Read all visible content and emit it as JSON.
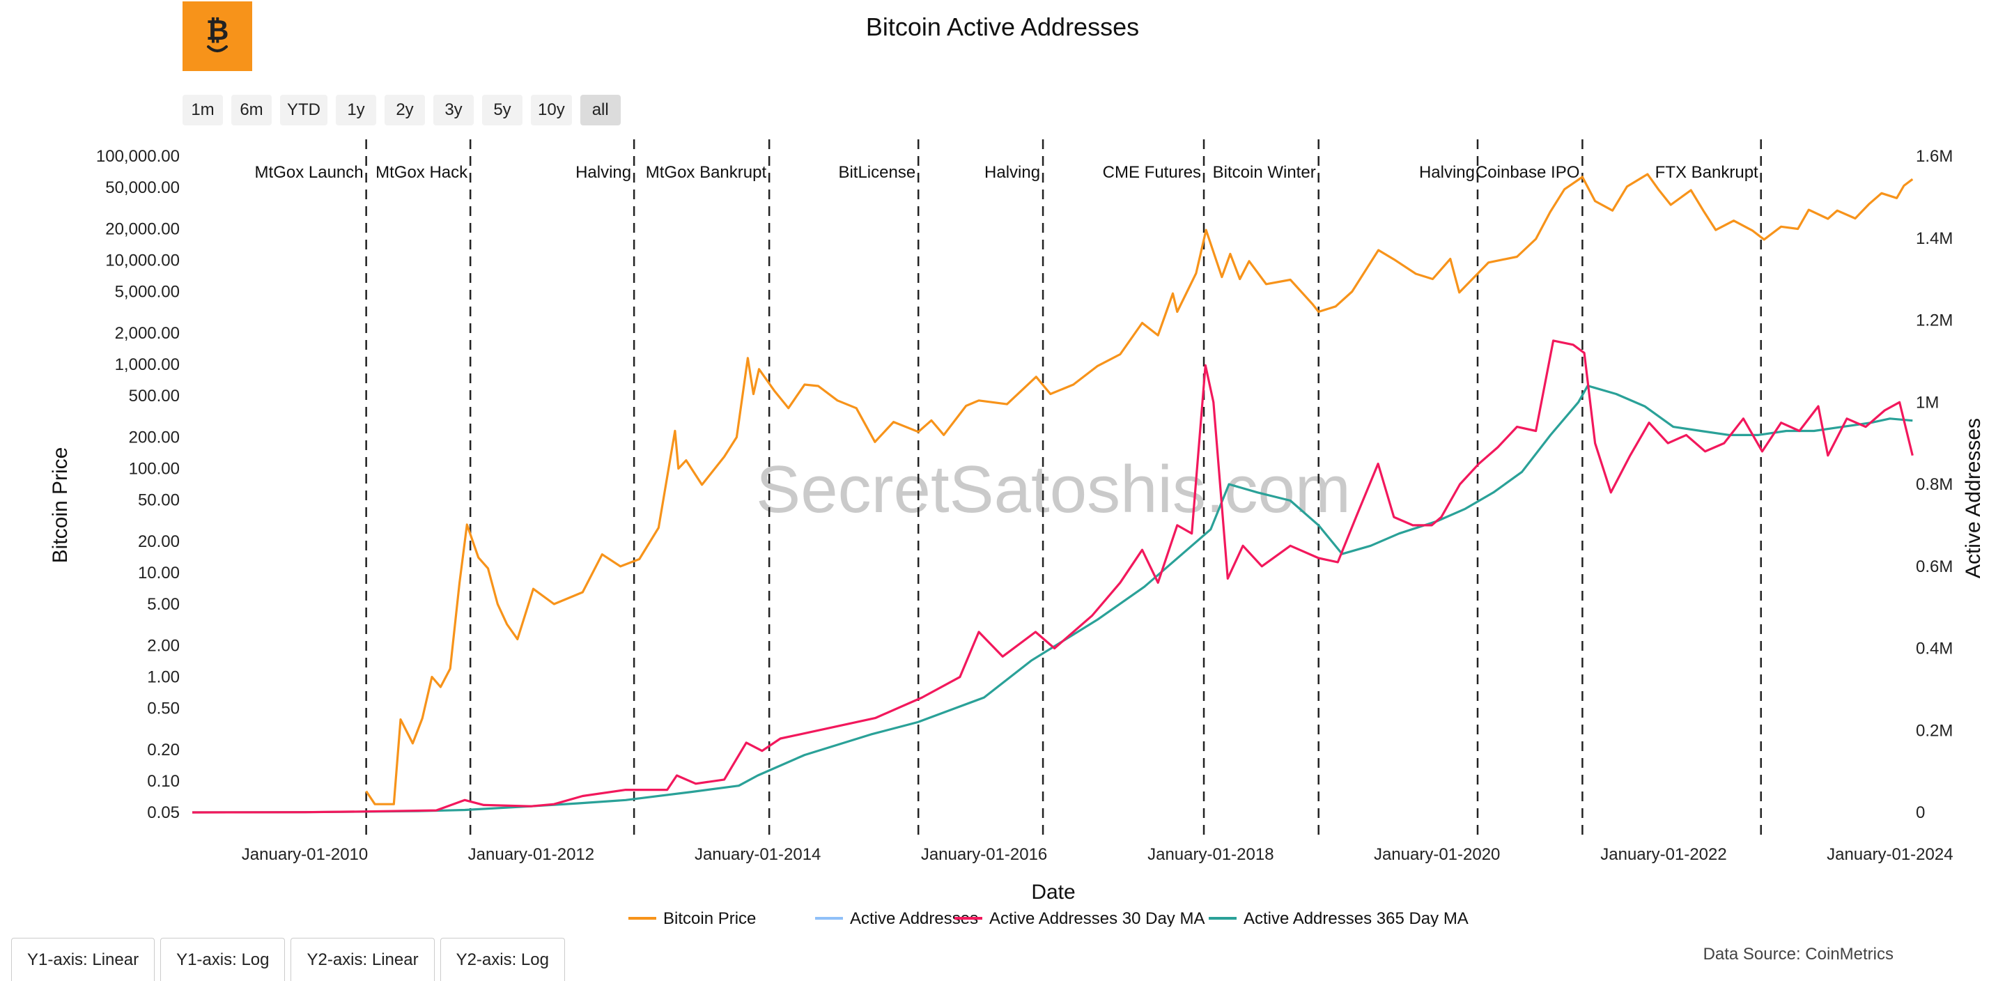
{
  "title": "Bitcoin Active Addresses",
  "watermark": "SecretSatoshis.com",
  "data_source": "Data Source: CoinMetrics",
  "range_buttons": [
    "1m",
    "6m",
    "YTD",
    "1y",
    "2y",
    "3y",
    "5y",
    "10y",
    "all"
  ],
  "active_range": "all",
  "axis_buttons": [
    "Y1-axis: Linear",
    "Y1-axis: Log",
    "Y2-axis: Linear",
    "Y2-axis: Log"
  ],
  "colors": {
    "price": "#f7931a",
    "active": "#90c0f8",
    "ma30": "#f2185c",
    "ma365": "#2aa198",
    "logo": "#f7931a"
  },
  "chart_data": {
    "type": "line",
    "title": "Bitcoin Active Addresses",
    "xlabel": "Date",
    "ylabel": "Bitcoin Price",
    "y2label": "Active Addresses",
    "y1_scale": "log",
    "y1_ticks": [
      {
        "v": 100000,
        "label": "100,000.00"
      },
      {
        "v": 50000,
        "label": "50,000.00"
      },
      {
        "v": 20000,
        "label": "20,000.00"
      },
      {
        "v": 10000,
        "label": "10,000.00"
      },
      {
        "v": 5000,
        "label": "5,000.00"
      },
      {
        "v": 2000,
        "label": "2,000.00"
      },
      {
        "v": 1000,
        "label": "1,000.00"
      },
      {
        "v": 500,
        "label": "500.00"
      },
      {
        "v": 200,
        "label": "200.00"
      },
      {
        "v": 100,
        "label": "100.00"
      },
      {
        "v": 50,
        "label": "50.00"
      },
      {
        "v": 20,
        "label": "20.00"
      },
      {
        "v": 10,
        "label": "10.00"
      },
      {
        "v": 5,
        "label": "5.00"
      },
      {
        "v": 2,
        "label": "2.00"
      },
      {
        "v": 1,
        "label": "1.00"
      },
      {
        "v": 0.5,
        "label": "0.50"
      },
      {
        "v": 0.2,
        "label": "0.20"
      },
      {
        "v": 0.1,
        "label": "0.10"
      },
      {
        "v": 0.05,
        "label": "0.05"
      }
    ],
    "y2_ticks": [
      {
        "v": 1600000,
        "label": "1.6M"
      },
      {
        "v": 1400000,
        "label": "1.4M"
      },
      {
        "v": 1200000,
        "label": "1.2M"
      },
      {
        "v": 1000000,
        "label": "1M"
      },
      {
        "v": 800000,
        "label": "0.8M"
      },
      {
        "v": 600000,
        "label": "0.6M"
      },
      {
        "v": 400000,
        "label": "0.4M"
      },
      {
        "v": 200000,
        "label": "0.2M"
      },
      {
        "v": 0,
        "label": "0"
      }
    ],
    "y2lim": [
      0,
      1600000
    ],
    "xlim": [
      "2009-01-03",
      "2024-03-20"
    ],
    "x_ticks": [
      {
        "date": "2010-01-01",
        "label": "January-01-2010"
      },
      {
        "date": "2012-01-01",
        "label": "January-01-2012"
      },
      {
        "date": "2014-01-01",
        "label": "January-01-2014"
      },
      {
        "date": "2016-01-01",
        "label": "January-01-2016"
      },
      {
        "date": "2018-01-01",
        "label": "January-01-2018"
      },
      {
        "date": "2020-01-01",
        "label": "January-01-2020"
      },
      {
        "date": "2022-01-01",
        "label": "January-01-2022"
      },
      {
        "date": "2024-01-01",
        "label": "January-01-2024"
      }
    ],
    "events": [
      {
        "date": "2010-07-18",
        "label": "MtGox Launch"
      },
      {
        "date": "2011-06-19",
        "label": "MtGox Hack"
      },
      {
        "date": "2012-11-28",
        "label": "Halving"
      },
      {
        "date": "2014-02-07",
        "label": "MtGox Bankrupt"
      },
      {
        "date": "2015-06-03",
        "label": "BitLicense"
      },
      {
        "date": "2016-07-09",
        "label": "Halving"
      },
      {
        "date": "2017-12-10",
        "label": "CME Futures"
      },
      {
        "date": "2018-12-15",
        "label": "Bitcoin Winter"
      },
      {
        "date": "2020-05-11",
        "label": "Halving"
      },
      {
        "date": "2021-04-14",
        "label": "Coinbase IPO"
      },
      {
        "date": "2022-11-11",
        "label": "FTX Bankrupt"
      }
    ],
    "legend_position": "bottom-center",
    "series": [
      {
        "name": "Bitcoin Price",
        "axis": "y1",
        "color": "#f7931a",
        "points": [
          [
            "2010-07-18",
            0.08
          ],
          [
            "2010-08-15",
            0.06
          ],
          [
            "2010-10-15",
            0.06
          ],
          [
            "2010-11-06",
            0.39
          ],
          [
            "2010-12-15",
            0.23
          ],
          [
            "2011-01-15",
            0.4
          ],
          [
            "2011-02-15",
            1.0
          ],
          [
            "2011-03-15",
            0.8
          ],
          [
            "2011-04-15",
            1.2
          ],
          [
            "2011-05-15",
            8
          ],
          [
            "2011-06-08",
            29
          ],
          [
            "2011-07-15",
            14
          ],
          [
            "2011-08-15",
            11
          ],
          [
            "2011-09-15",
            5
          ],
          [
            "2011-10-15",
            3.2
          ],
          [
            "2011-11-18",
            2.3
          ],
          [
            "2012-01-08",
            7
          ],
          [
            "2012-03-15",
            5
          ],
          [
            "2012-06-15",
            6.5
          ],
          [
            "2012-08-17",
            15
          ],
          [
            "2012-10-15",
            11.5
          ],
          [
            "2012-12-15",
            13.5
          ],
          [
            "2013-02-15",
            27
          ],
          [
            "2013-04-09",
            230
          ],
          [
            "2013-04-20",
            100
          ],
          [
            "2013-05-15",
            120
          ],
          [
            "2013-07-05",
            70
          ],
          [
            "2013-09-15",
            130
          ],
          [
            "2013-10-25",
            200
          ],
          [
            "2013-11-30",
            1150
          ],
          [
            "2013-12-18",
            520
          ],
          [
            "2014-01-05",
            900
          ],
          [
            "2014-02-25",
            550
          ],
          [
            "2014-04-10",
            380
          ],
          [
            "2014-06-01",
            640
          ],
          [
            "2014-07-15",
            620
          ],
          [
            "2014-09-15",
            450
          ],
          [
            "2014-11-15",
            380
          ],
          [
            "2015-01-14",
            180
          ],
          [
            "2015-03-15",
            280
          ],
          [
            "2015-06-03",
            225
          ],
          [
            "2015-07-15",
            290
          ],
          [
            "2015-08-24",
            210
          ],
          [
            "2015-11-04",
            400
          ],
          [
            "2015-12-15",
            450
          ],
          [
            "2016-03-15",
            415
          ],
          [
            "2016-06-17",
            760
          ],
          [
            "2016-08-02",
            520
          ],
          [
            "2016-10-15",
            640
          ],
          [
            "2016-12-31",
            960
          ],
          [
            "2017-03-15",
            1250
          ],
          [
            "2017-05-25",
            2500
          ],
          [
            "2017-07-15",
            1900
          ],
          [
            "2017-09-01",
            4800
          ],
          [
            "2017-09-15",
            3200
          ],
          [
            "2017-11-15",
            7500
          ],
          [
            "2017-12-17",
            19500
          ],
          [
            "2018-02-06",
            6900
          ],
          [
            "2018-03-05",
            11500
          ],
          [
            "2018-04-05",
            6600
          ],
          [
            "2018-05-05",
            9800
          ],
          [
            "2018-06-29",
            5900
          ],
          [
            "2018-09-15",
            6500
          ],
          [
            "2018-11-25",
            3800
          ],
          [
            "2018-12-15",
            3200
          ],
          [
            "2019-02-08",
            3600
          ],
          [
            "2019-04-02",
            5000
          ],
          [
            "2019-06-26",
            12500
          ],
          [
            "2019-08-15",
            10200
          ],
          [
            "2019-10-25",
            7400
          ],
          [
            "2019-12-18",
            6600
          ],
          [
            "2020-02-13",
            10300
          ],
          [
            "2020-03-13",
            4900
          ],
          [
            "2020-06-15",
            9500
          ],
          [
            "2020-09-15",
            10800
          ],
          [
            "2020-11-15",
            16000
          ],
          [
            "2020-12-31",
            29000
          ],
          [
            "2021-02-15",
            48000
          ],
          [
            "2021-04-14",
            63000
          ],
          [
            "2021-05-25",
            37000
          ],
          [
            "2021-07-20",
            30000
          ],
          [
            "2021-09-05",
            51000
          ],
          [
            "2021-11-10",
            67000
          ],
          [
            "2021-12-15",
            48000
          ],
          [
            "2022-01-24",
            34000
          ],
          [
            "2022-03-30",
            47000
          ],
          [
            "2022-05-12",
            29000
          ],
          [
            "2022-06-18",
            19500
          ],
          [
            "2022-08-15",
            24000
          ],
          [
            "2022-10-15",
            19200
          ],
          [
            "2022-11-21",
            15800
          ],
          [
            "2023-01-15",
            21000
          ],
          [
            "2023-03-10",
            20000
          ],
          [
            "2023-04-14",
            30500
          ],
          [
            "2023-06-15",
            25000
          ],
          [
            "2023-07-15",
            30000
          ],
          [
            "2023-09-11",
            25200
          ],
          [
            "2023-10-25",
            34500
          ],
          [
            "2023-12-05",
            44000
          ],
          [
            "2024-01-23",
            39500
          ],
          [
            "2024-02-15",
            52000
          ],
          [
            "2024-03-14",
            60000
          ]
        ]
      },
      {
        "name": "Active Addresses",
        "axis": "y2",
        "color": "#90c0f8",
        "hidden": true,
        "points": []
      },
      {
        "name": "Active Addresses 30 Day MA",
        "axis": "y2",
        "color": "#f2185c",
        "points": [
          [
            "2009-01-03",
            0
          ],
          [
            "2010-01-01",
            500
          ],
          [
            "2010-07-01",
            2000
          ],
          [
            "2011-03-01",
            5000
          ],
          [
            "2011-06-01",
            30000
          ],
          [
            "2011-08-01",
            18000
          ],
          [
            "2012-01-01",
            15000
          ],
          [
            "2012-03-15",
            20000
          ],
          [
            "2012-06-15",
            40000
          ],
          [
            "2012-11-01",
            55000
          ],
          [
            "2013-03-15",
            55000
          ],
          [
            "2013-04-15",
            90000
          ],
          [
            "2013-06-15",
            70000
          ],
          [
            "2013-09-15",
            80000
          ],
          [
            "2013-11-25",
            170000
          ],
          [
            "2014-01-15",
            150000
          ],
          [
            "2014-03-15",
            180000
          ],
          [
            "2014-07-15",
            200000
          ],
          [
            "2015-01-15",
            230000
          ],
          [
            "2015-06-15",
            280000
          ],
          [
            "2015-10-15",
            330000
          ],
          [
            "2015-12-15",
            440000
          ],
          [
            "2016-03-01",
            380000
          ],
          [
            "2016-06-15",
            440000
          ],
          [
            "2016-08-15",
            400000
          ],
          [
            "2016-12-15",
            480000
          ],
          [
            "2017-03-15",
            560000
          ],
          [
            "2017-05-25",
            640000
          ],
          [
            "2017-07-15",
            560000
          ],
          [
            "2017-09-15",
            700000
          ],
          [
            "2017-11-01",
            680000
          ],
          [
            "2017-12-15",
            1090000
          ],
          [
            "2018-01-10",
            1000000
          ],
          [
            "2018-02-25",
            570000
          ],
          [
            "2018-04-15",
            650000
          ],
          [
            "2018-06-15",
            600000
          ],
          [
            "2018-09-15",
            650000
          ],
          [
            "2018-12-15",
            620000
          ],
          [
            "2019-02-15",
            610000
          ],
          [
            "2019-04-15",
            720000
          ],
          [
            "2019-06-25",
            850000
          ],
          [
            "2019-08-15",
            720000
          ],
          [
            "2019-10-15",
            700000
          ],
          [
            "2019-12-15",
            700000
          ],
          [
            "2020-01-15",
            720000
          ],
          [
            "2020-03-15",
            800000
          ],
          [
            "2020-05-15",
            850000
          ],
          [
            "2020-07-15",
            890000
          ],
          [
            "2020-09-15",
            940000
          ],
          [
            "2020-11-15",
            930000
          ],
          [
            "2021-01-10",
            1150000
          ],
          [
            "2021-03-15",
            1140000
          ],
          [
            "2021-04-20",
            1120000
          ],
          [
            "2021-05-25",
            900000
          ],
          [
            "2021-07-15",
            780000
          ],
          [
            "2021-09-15",
            870000
          ],
          [
            "2021-11-15",
            950000
          ],
          [
            "2022-01-15",
            900000
          ],
          [
            "2022-03-15",
            920000
          ],
          [
            "2022-05-15",
            880000
          ],
          [
            "2022-07-15",
            900000
          ],
          [
            "2022-09-15",
            960000
          ],
          [
            "2022-11-15",
            880000
          ],
          [
            "2023-01-15",
            950000
          ],
          [
            "2023-03-15",
            930000
          ],
          [
            "2023-05-15",
            990000
          ],
          [
            "2023-06-15",
            870000
          ],
          [
            "2023-08-15",
            960000
          ],
          [
            "2023-10-15",
            940000
          ],
          [
            "2023-12-15",
            980000
          ],
          [
            "2024-02-01",
            1000000
          ],
          [
            "2024-03-14",
            870000
          ]
        ]
      },
      {
        "name": "Active Addresses 365 Day MA",
        "axis": "y2",
        "color": "#2aa198",
        "points": [
          [
            "2009-01-03",
            0
          ],
          [
            "2010-01-01",
            500
          ],
          [
            "2011-01-01",
            3000
          ],
          [
            "2011-06-01",
            6000
          ],
          [
            "2012-01-01",
            15000
          ],
          [
            "2012-06-01",
            22000
          ],
          [
            "2012-11-01",
            30000
          ],
          [
            "2013-06-01",
            50000
          ],
          [
            "2013-11-01",
            65000
          ],
          [
            "2014-01-01",
            90000
          ],
          [
            "2014-06-01",
            140000
          ],
          [
            "2015-01-01",
            190000
          ],
          [
            "2015-06-01",
            220000
          ],
          [
            "2016-01-01",
            280000
          ],
          [
            "2016-06-01",
            370000
          ],
          [
            "2017-01-01",
            470000
          ],
          [
            "2017-06-01",
            550000
          ],
          [
            "2018-01-01",
            690000
          ],
          [
            "2018-03-01",
            800000
          ],
          [
            "2018-06-01",
            780000
          ],
          [
            "2018-09-15",
            760000
          ],
          [
            "2018-12-15",
            700000
          ],
          [
            "2019-03-01",
            630000
          ],
          [
            "2019-06-01",
            650000
          ],
          [
            "2019-09-01",
            680000
          ],
          [
            "2020-01-01",
            710000
          ],
          [
            "2020-04-01",
            740000
          ],
          [
            "2020-07-01",
            780000
          ],
          [
            "2020-10-01",
            830000
          ],
          [
            "2021-01-01",
            920000
          ],
          [
            "2021-04-01",
            1000000
          ],
          [
            "2021-05-01",
            1040000
          ],
          [
            "2021-08-01",
            1020000
          ],
          [
            "2021-11-01",
            990000
          ],
          [
            "2022-02-01",
            940000
          ],
          [
            "2022-05-01",
            930000
          ],
          [
            "2022-08-01",
            920000
          ],
          [
            "2022-11-01",
            920000
          ],
          [
            "2023-02-01",
            930000
          ],
          [
            "2023-05-01",
            930000
          ],
          [
            "2023-08-01",
            940000
          ],
          [
            "2023-11-01",
            950000
          ],
          [
            "2024-01-01",
            960000
          ],
          [
            "2024-03-14",
            955000
          ]
        ]
      }
    ]
  }
}
